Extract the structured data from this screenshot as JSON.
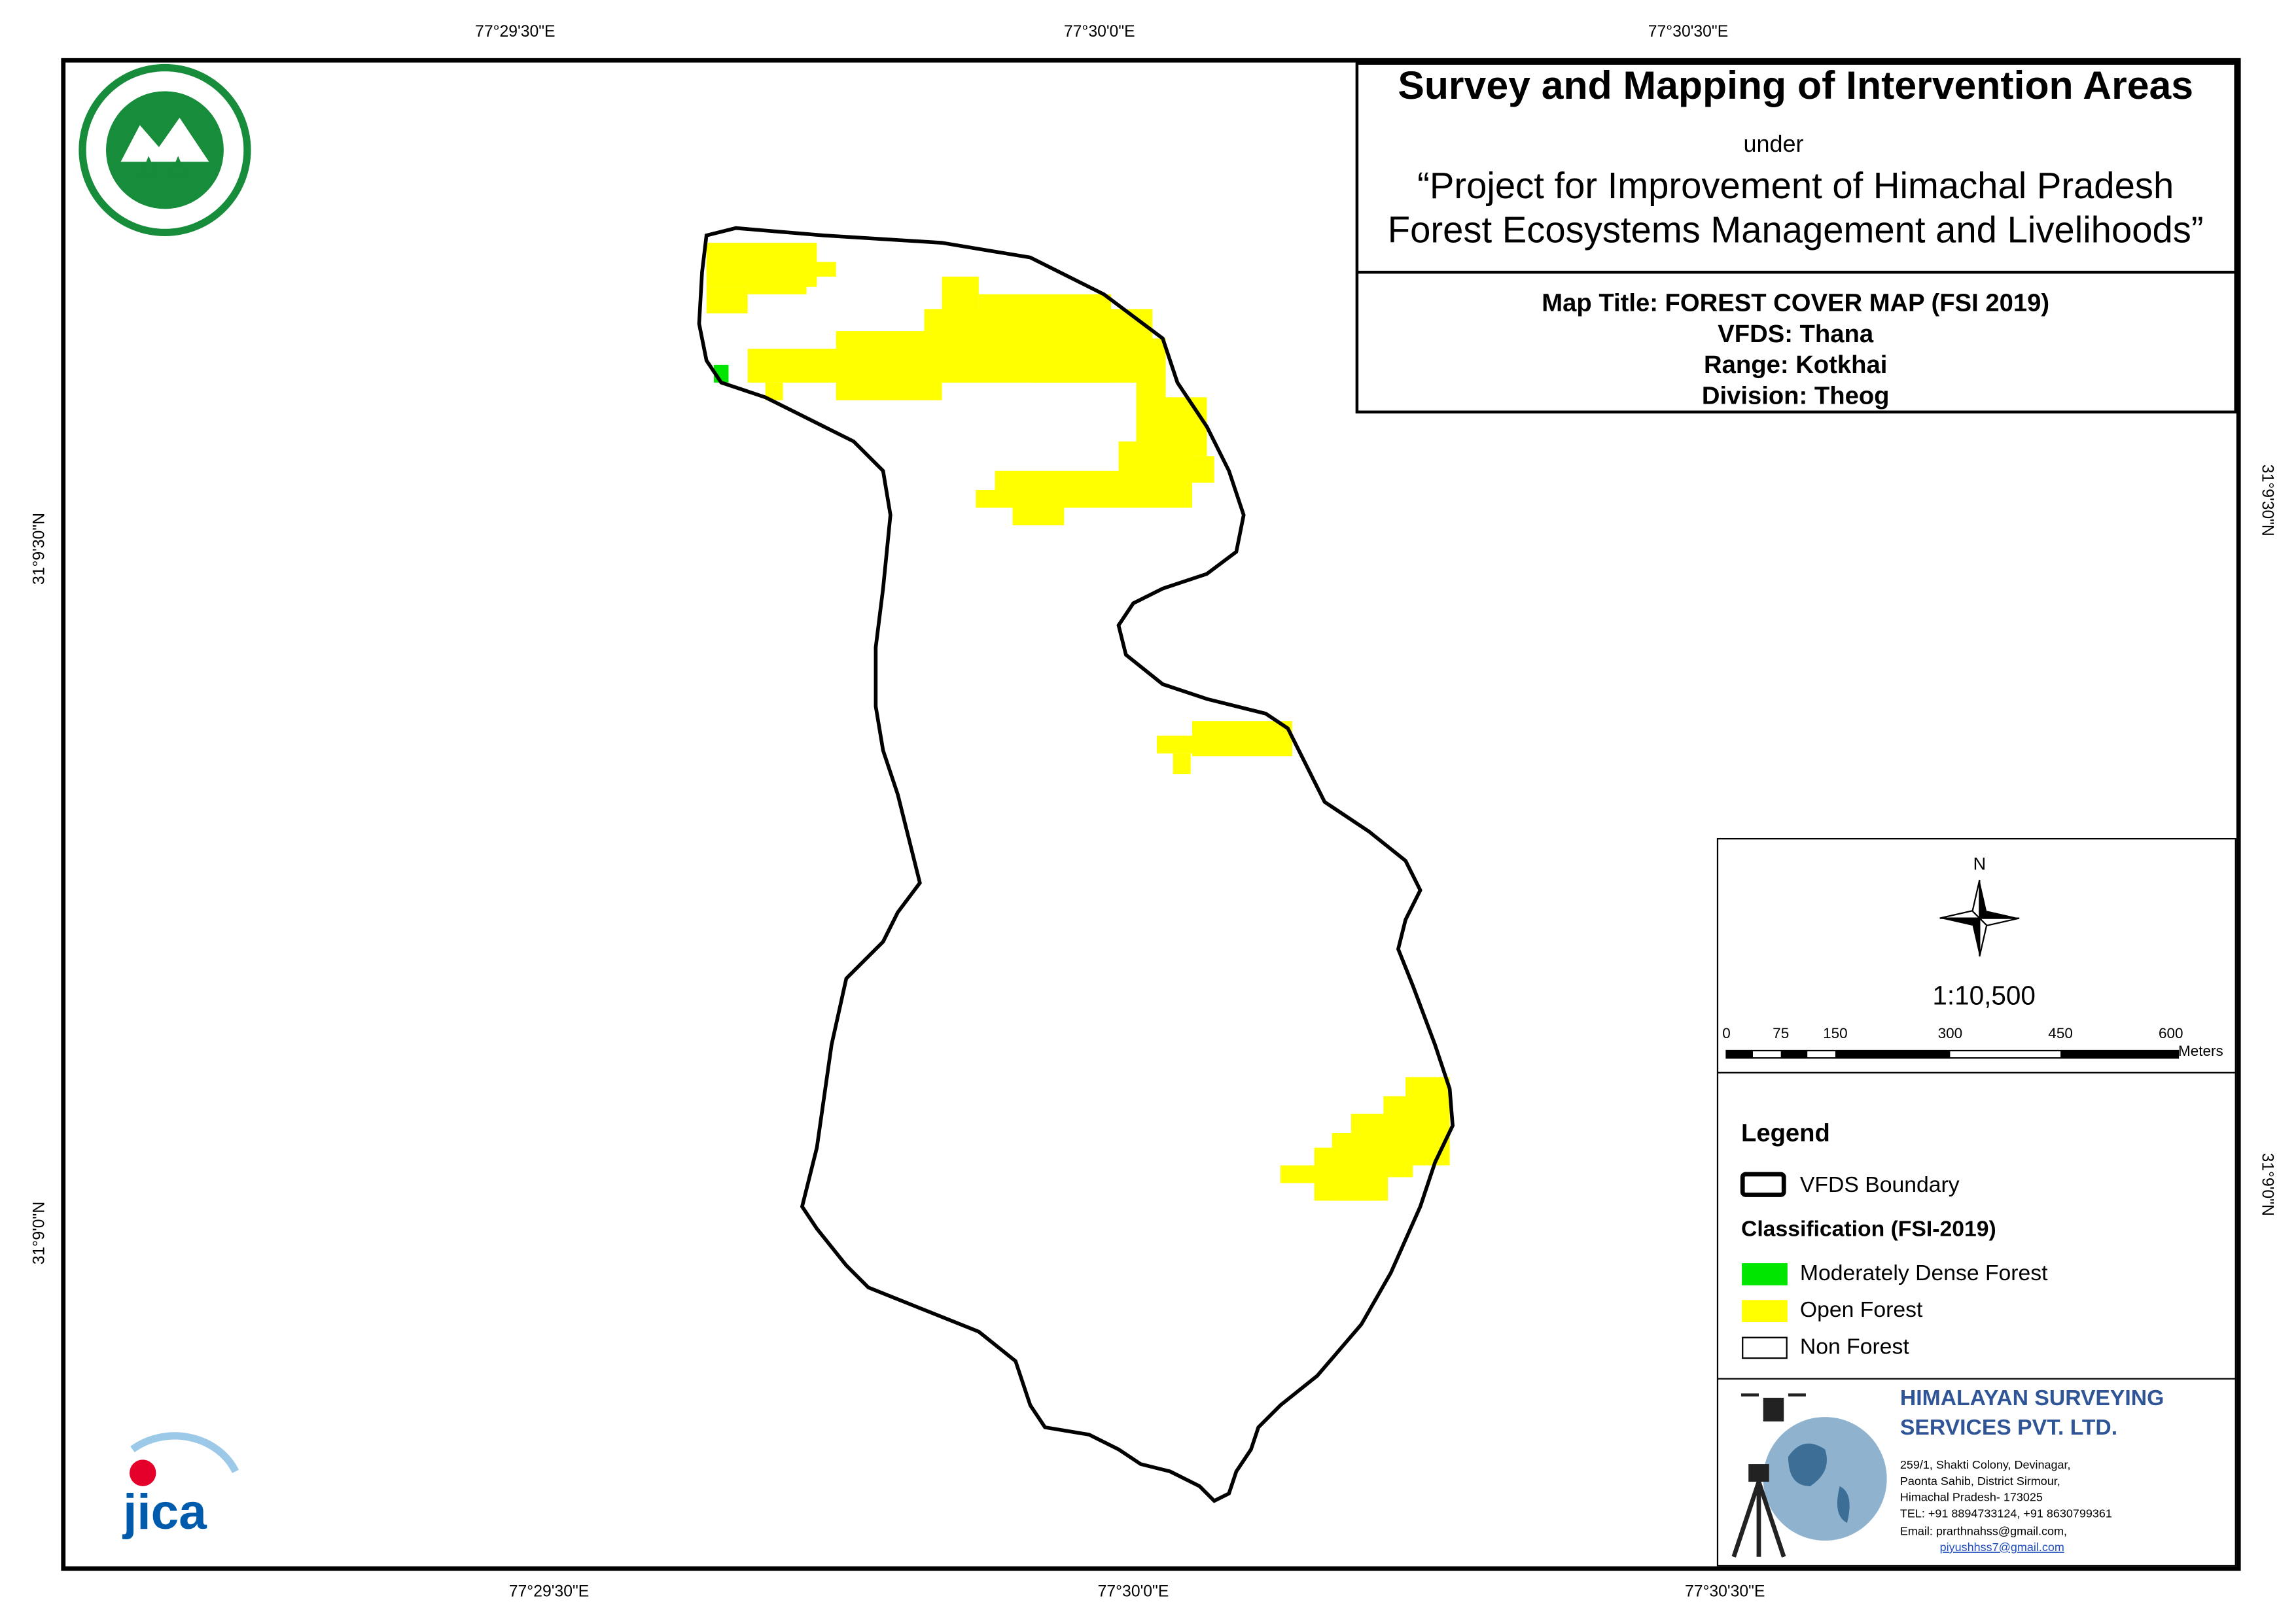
{
  "header": {
    "title": "Survey and Mapping of Intervention Areas",
    "subtitle": "under",
    "project_line1": "“Project for Improvement of Himachal Pradesh",
    "project_line2": "Forest Ecosystems Management and Livelihoods”"
  },
  "map_info": [
    "Map Title: FOREST COVER MAP (FSI 2019)",
    "VFDS: Thana",
    "Range: Kotkhai",
    "Division: Theog"
  ],
  "grid_labels": {
    "top": [
      "77°29'30\"E",
      "77°30'0\"E",
      "77°30'30\"E"
    ],
    "bottom": [
      "77°29'30\"E",
      "77°30'0\"E",
      "77°30'30\"E"
    ],
    "left": [
      "31°9'30\"N",
      "31°9'0\"N"
    ],
    "right": [
      "31°9'30\"N",
      "31°9'0\"N"
    ]
  },
  "north": "N",
  "scale": "1:10,500",
  "scale_bar": {
    "ticks": [
      "0",
      "75",
      "150",
      "300",
      "450",
      "600"
    ],
    "unit": "Meters"
  },
  "legend": {
    "title": "Legend",
    "boundary": "VFDS Boundary",
    "classification_title": "Classification (FSI-2019)",
    "classes": [
      {
        "label": "Moderately Dense Forest",
        "color": "#00e600"
      },
      {
        "label": "Open Forest",
        "color": "#ffff00"
      },
      {
        "label": "Non Forest",
        "color": "#ffffff"
      }
    ]
  },
  "company": {
    "name_line1": "HIMALAYAN SURVEYING",
    "name_line2": "SERVICES PVT. LTD.",
    "address": [
      "259/1, Shakti Colony, Devinagar,",
      "Paonta Sahib, District Sirmour,",
      "Himachal Pradesh- 173025",
      "TEL: +91 8894733124, +91 8630799361"
    ],
    "emails": [
      "Email: prarthnahss@gmail.com,",
      "piyushhss7@gmail.com"
    ]
  },
  "logo": "JICA"
}
